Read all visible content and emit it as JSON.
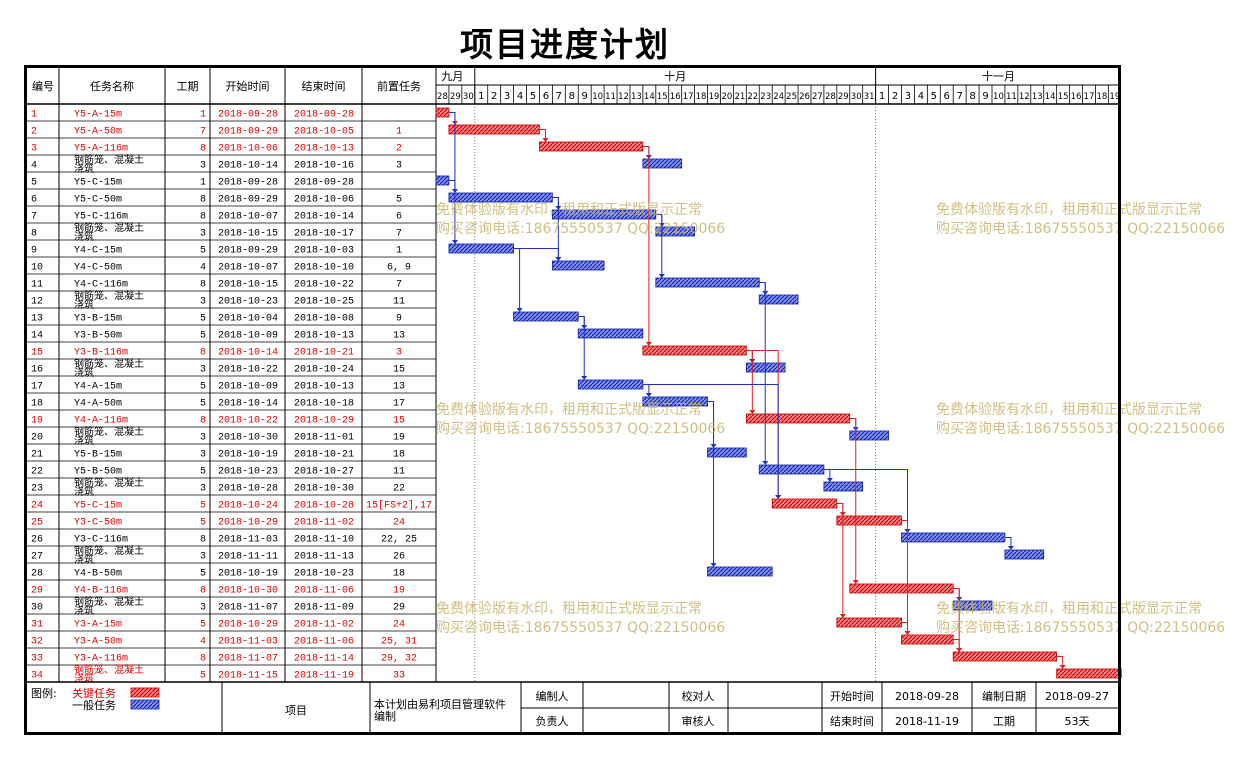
{
  "title": "项目进度计划",
  "headers": {
    "id": "编号",
    "name": "任务名称",
    "dur": "工期",
    "start": "开始时间",
    "end": "结束时间",
    "pred": "前置任务"
  },
  "timeline": {
    "months": [
      {
        "label": "九月",
        "days": [
          "28",
          "29",
          "30"
        ]
      },
      {
        "label": "十月",
        "days": [
          "1",
          "2",
          "3",
          "4",
          "5",
          "6",
          "7",
          "8",
          "9",
          "10",
          "11",
          "12",
          "13",
          "14",
          "15",
          "16",
          "17",
          "18",
          "19",
          "20",
          "21",
          "22",
          "23",
          "24",
          "25",
          "26",
          "27",
          "28",
          "29",
          "30",
          "31"
        ]
      },
      {
        "label": "十一月",
        "days": [
          "1",
          "2",
          "3",
          "4",
          "5",
          "6",
          "7",
          "8",
          "9",
          "10",
          "11",
          "12",
          "13",
          "14",
          "15",
          "16",
          "17",
          "18",
          "19"
        ]
      }
    ],
    "start_date": "2018-09-28"
  },
  "tasks": [
    {
      "id": "1",
      "name": "Y5-A-15m",
      "dur": "1",
      "start": "2018-09-28",
      "end": "2018-09-28",
      "pred": "",
      "critical": true
    },
    {
      "id": "2",
      "name": "Y5-A-50m",
      "dur": "7",
      "start": "2018-09-29",
      "end": "2018-10-05",
      "pred": "1",
      "critical": true
    },
    {
      "id": "3",
      "name": "Y5-A-116m",
      "dur": "8",
      "start": "2018-10-06",
      "end": "2018-10-13",
      "pred": "2",
      "critical": true
    },
    {
      "id": "4",
      "name": "钢筋笼、混凝土浇筑",
      "dur": "3",
      "start": "2018-10-14",
      "end": "2018-10-16",
      "pred": "3",
      "critical": false
    },
    {
      "id": "5",
      "name": "Y5-C-15m",
      "dur": "1",
      "start": "2018-09-28",
      "end": "2018-09-28",
      "pred": "",
      "critical": false
    },
    {
      "id": "6",
      "name": "Y5-C-50m",
      "dur": "8",
      "start": "2018-09-29",
      "end": "2018-10-06",
      "pred": "5",
      "critical": false
    },
    {
      "id": "7",
      "name": "Y5-C-116m",
      "dur": "8",
      "start": "2018-10-07",
      "end": "2018-10-14",
      "pred": "6",
      "critical": false
    },
    {
      "id": "8",
      "name": "钢筋笼、混凝土浇筑",
      "dur": "3",
      "start": "2018-10-15",
      "end": "2018-10-17",
      "pred": "7",
      "critical": false
    },
    {
      "id": "9",
      "name": "Y4-C-15m",
      "dur": "5",
      "start": "2018-09-29",
      "end": "2018-10-03",
      "pred": "1",
      "critical": false
    },
    {
      "id": "10",
      "name": "Y4-C-50m",
      "dur": "4",
      "start": "2018-10-07",
      "end": "2018-10-10",
      "pred": "6, 9",
      "critical": false
    },
    {
      "id": "11",
      "name": "Y4-C-116m",
      "dur": "8",
      "start": "2018-10-15",
      "end": "2018-10-22",
      "pred": "7",
      "critical": false
    },
    {
      "id": "12",
      "name": "钢筋笼、混凝土浇筑",
      "dur": "3",
      "start": "2018-10-23",
      "end": "2018-10-25",
      "pred": "11",
      "critical": false
    },
    {
      "id": "13",
      "name": "Y3-B-15m",
      "dur": "5",
      "start": "2018-10-04",
      "end": "2018-10-08",
      "pred": "9",
      "critical": false
    },
    {
      "id": "14",
      "name": "Y3-B-50m",
      "dur": "5",
      "start": "2018-10-09",
      "end": "2018-10-13",
      "pred": "13",
      "critical": false
    },
    {
      "id": "15",
      "name": "Y3-B-116m",
      "dur": "8",
      "start": "2018-10-14",
      "end": "2018-10-21",
      "pred": "3",
      "critical": true
    },
    {
      "id": "16",
      "name": "钢筋笼、混凝土浇筑",
      "dur": "3",
      "start": "2018-10-22",
      "end": "2018-10-24",
      "pred": "15",
      "critical": false
    },
    {
      "id": "17",
      "name": "Y4-A-15m",
      "dur": "5",
      "start": "2018-10-09",
      "end": "2018-10-13",
      "pred": "13",
      "critical": false
    },
    {
      "id": "18",
      "name": "Y4-A-50m",
      "dur": "5",
      "start": "2018-10-14",
      "end": "2018-10-18",
      "pred": "17",
      "critical": false
    },
    {
      "id": "19",
      "name": "Y4-A-116m",
      "dur": "8",
      "start": "2018-10-22",
      "end": "2018-10-29",
      "pred": "15",
      "critical": true
    },
    {
      "id": "20",
      "name": "钢筋笼、混凝土浇筑",
      "dur": "3",
      "start": "2018-10-30",
      "end": "2018-11-01",
      "pred": "19",
      "critical": false
    },
    {
      "id": "21",
      "name": "Y5-B-15m",
      "dur": "3",
      "start": "2018-10-19",
      "end": "2018-10-21",
      "pred": "18",
      "critical": false
    },
    {
      "id": "22",
      "name": "Y5-B-50m",
      "dur": "5",
      "start": "2018-10-23",
      "end": "2018-10-27",
      "pred": "11",
      "critical": false
    },
    {
      "id": "23",
      "name": "钢筋笼、混凝土浇筑",
      "dur": "3",
      "start": "2018-10-28",
      "end": "2018-10-30",
      "pred": "22",
      "critical": false
    },
    {
      "id": "24",
      "name": "Y5-C-15m",
      "dur": "5",
      "start": "2018-10-24",
      "end": "2018-10-28",
      "pred": "15[FS+2],17",
      "critical": true
    },
    {
      "id": "25",
      "name": "Y3-C-50m",
      "dur": "5",
      "start": "2018-10-29",
      "end": "2018-11-02",
      "pred": "24",
      "critical": true
    },
    {
      "id": "26",
      "name": "Y3-C-116m",
      "dur": "8",
      "start": "2018-11-03",
      "end": "2018-11-10",
      "pred": "22, 25",
      "critical": false
    },
    {
      "id": "27",
      "name": "钢筋笼、混凝土浇筑",
      "dur": "3",
      "start": "2018-11-11",
      "end": "2018-11-13",
      "pred": "26",
      "critical": false
    },
    {
      "id": "28",
      "name": "Y4-B-50m",
      "dur": "5",
      "start": "2018-10-19",
      "end": "2018-10-23",
      "pred": "18",
      "critical": false
    },
    {
      "id": "29",
      "name": "Y4-B-116m",
      "dur": "8",
      "start": "2018-10-30",
      "end": "2018-11-06",
      "pred": "19",
      "critical": true
    },
    {
      "id": "30",
      "name": "钢筋笼、混凝土浇筑",
      "dur": "3",
      "start": "2018-11-07",
      "end": "2018-11-09",
      "pred": "29",
      "critical": false
    },
    {
      "id": "31",
      "name": "Y3-A-15m",
      "dur": "5",
      "start": "2018-10-29",
      "end": "2018-11-02",
      "pred": "24",
      "critical": true
    },
    {
      "id": "32",
      "name": "Y3-A-50m",
      "dur": "4",
      "start": "2018-11-03",
      "end": "2018-11-06",
      "pred": "25, 31",
      "critical": true
    },
    {
      "id": "33",
      "name": "Y3-A-116m",
      "dur": "8",
      "start": "2018-11-07",
      "end": "2018-11-14",
      "pred": "29, 32",
      "critical": true
    },
    {
      "id": "34",
      "name": "钢筋笼、混凝土浇筑",
      "dur": "5",
      "start": "2018-11-15",
      "end": "2018-11-19",
      "pred": "33",
      "critical": true
    }
  ],
  "legend": {
    "label": "图例:",
    "critical": "关键任务",
    "normal": "一般任务"
  },
  "footer": {
    "project_label": "项目",
    "note": "本计划由易利项目管理软件编制",
    "author_label": "编制人",
    "author": "",
    "checker_label": "校对人",
    "checker": "",
    "owner_label": "负责人",
    "owner": "",
    "reviewer_label": "审核人",
    "reviewer": "",
    "start_label": "开始时间",
    "start": "2018-09-28",
    "end_label": "结束时间",
    "end": "2018-11-19",
    "made_label": "编制日期",
    "made": "2018-09-27",
    "dur_label": "工期",
    "dur": "53天"
  },
  "watermark": {
    "line1": "免费体验版有水印，租用和正式版显示正常",
    "line2": "购买咨询电话:18675550537 QQ:22150066"
  },
  "colors": {
    "critical": "#e02020",
    "normal": "#2030c0",
    "critical_text": "#e00000"
  }
}
